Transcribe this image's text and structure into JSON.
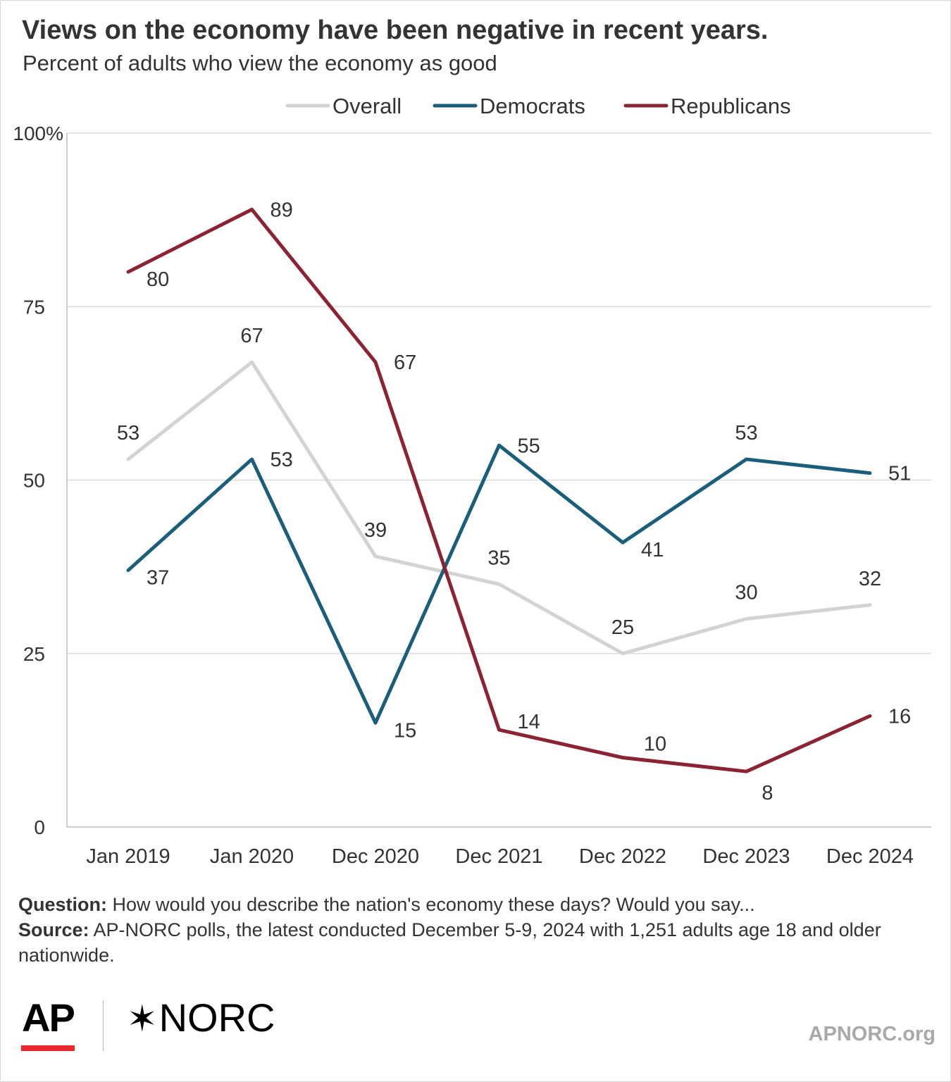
{
  "header": {
    "title": "Views on the economy have been negative in recent years.",
    "subtitle": "Percent of adults who view the economy as good"
  },
  "notes": {
    "question_label": "Question:",
    "question_text": " How would you describe the nation's economy these days? Would you say...",
    "source_label": "Source:",
    "source_text": "  AP-NORC polls, the latest conducted December 5-9, 2024 with 1,251 adults age 18 and older nationwide."
  },
  "footer": {
    "logo_ap": "AP",
    "logo_norc": "NORC",
    "site": "APNORC.org"
  },
  "chart_data": {
    "type": "line",
    "categories": [
      "Jan 2019",
      "Jan 2020",
      "Dec 2020",
      "Dec 2021",
      "Dec 2022",
      "Dec 2023",
      "Dec 2024"
    ],
    "ylim": [
      0,
      100
    ],
    "yticks": [
      0,
      25,
      50,
      75,
      100
    ],
    "ytick_labels": [
      "0",
      "25",
      "50",
      "75",
      "100%"
    ],
    "grid": true,
    "legend_position": "top-center",
    "series": [
      {
        "name": "Overall",
        "color": "#d3d3d3",
        "values": [
          53,
          67,
          39,
          35,
          25,
          30,
          32
        ],
        "label_pos": [
          "above",
          "above",
          "above",
          "above",
          "above",
          "above",
          "above"
        ]
      },
      {
        "name": "Democrats",
        "color": "#1b5e7c",
        "values": [
          37,
          53,
          15,
          55,
          41,
          53,
          51
        ],
        "label_pos": [
          "right",
          "right",
          "right",
          "right",
          "right",
          "above",
          "right"
        ]
      },
      {
        "name": "Republicans",
        "color": "#8b2332",
        "values": [
          80,
          89,
          67,
          14,
          10,
          8,
          16
        ],
        "label_pos": [
          "right",
          "right",
          "right",
          "right",
          "above",
          "below",
          "right"
        ]
      }
    ]
  }
}
